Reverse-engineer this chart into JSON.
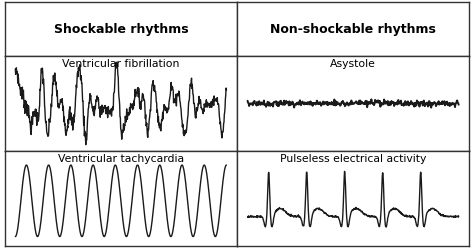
{
  "title_left": "Shockable rhythms",
  "title_right": "Non-shockable rhythms",
  "label_vf": "Ventricular fibrillation",
  "label_vt": "Ventricular tachycardia",
  "label_asystole": "Asystole",
  "label_pea": "Pulseless electrical activity",
  "bg_color": "#ffffff",
  "line_color": "#1a1a1a",
  "border_color": "#333333",
  "title_fontsize": 9.0,
  "label_fontsize": 7.8,
  "line_width": 1.0
}
